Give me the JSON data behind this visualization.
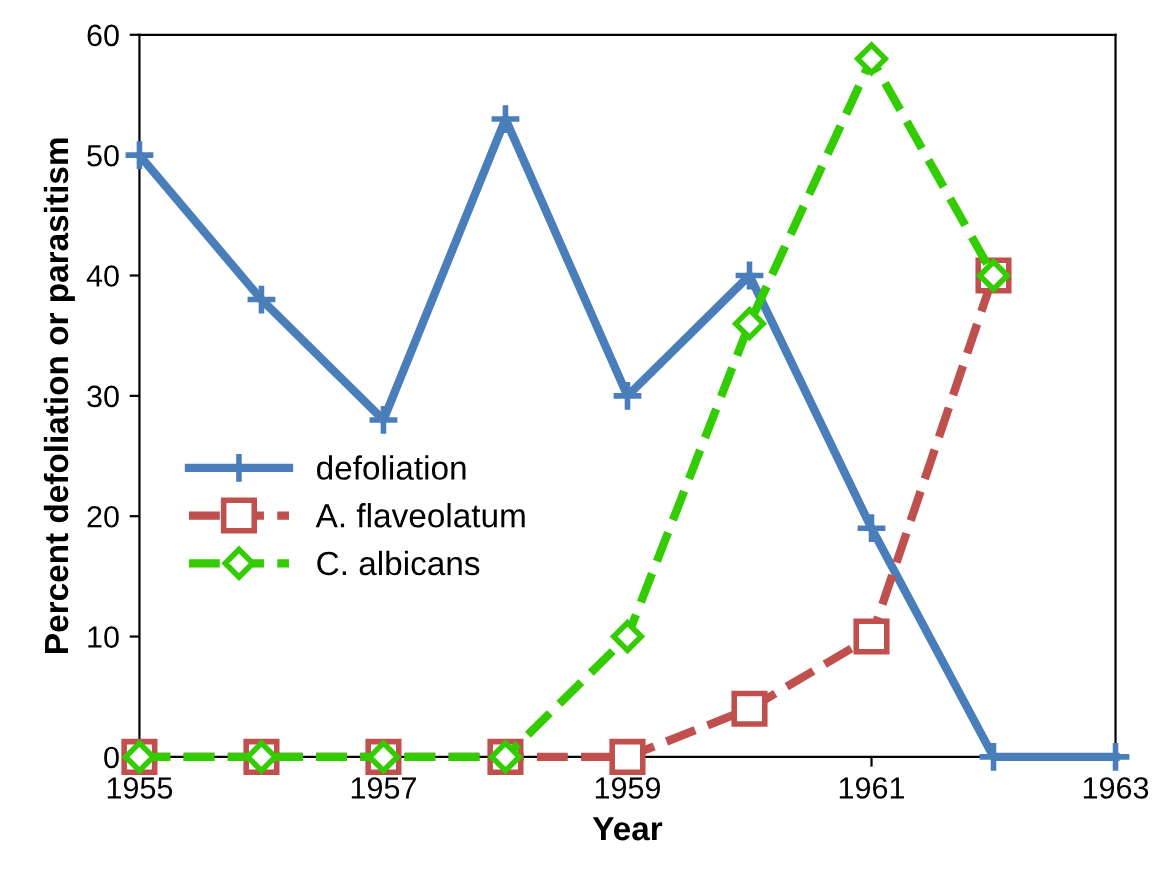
{
  "chart_data": {
    "type": "line",
    "xlabel": "Year",
    "ylabel": "Percent defoliation or parasitism",
    "x": [
      1955,
      1956,
      1957,
      1958,
      1959,
      1960,
      1961,
      1962,
      1963
    ],
    "series": [
      {
        "name": "defoliation",
        "color": "#4a7ebb",
        "marker": "cross",
        "line_style": "solid",
        "values": [
          50,
          38,
          28,
          53,
          30,
          40,
          19,
          0,
          0
        ]
      },
      {
        "name": "A. flaveolatum",
        "color": "#c0504d",
        "marker": "square",
        "line_style": "dashed",
        "values": [
          0,
          0,
          0,
          0,
          0,
          4,
          10,
          40,
          null
        ]
      },
      {
        "name": "C. albicans",
        "color": "#33cc00",
        "marker": "diamond",
        "line_style": "dashed",
        "values": [
          0,
          0,
          0,
          0,
          10,
          36,
          58,
          40,
          null
        ]
      }
    ],
    "xlim": [
      1955,
      1963
    ],
    "xticks": [
      1955,
      1957,
      1959,
      1961,
      1963
    ],
    "ylim": [
      0,
      60
    ],
    "yticks": [
      0,
      10,
      20,
      30,
      40,
      50,
      60
    ],
    "grid": false,
    "legend": "center left"
  }
}
